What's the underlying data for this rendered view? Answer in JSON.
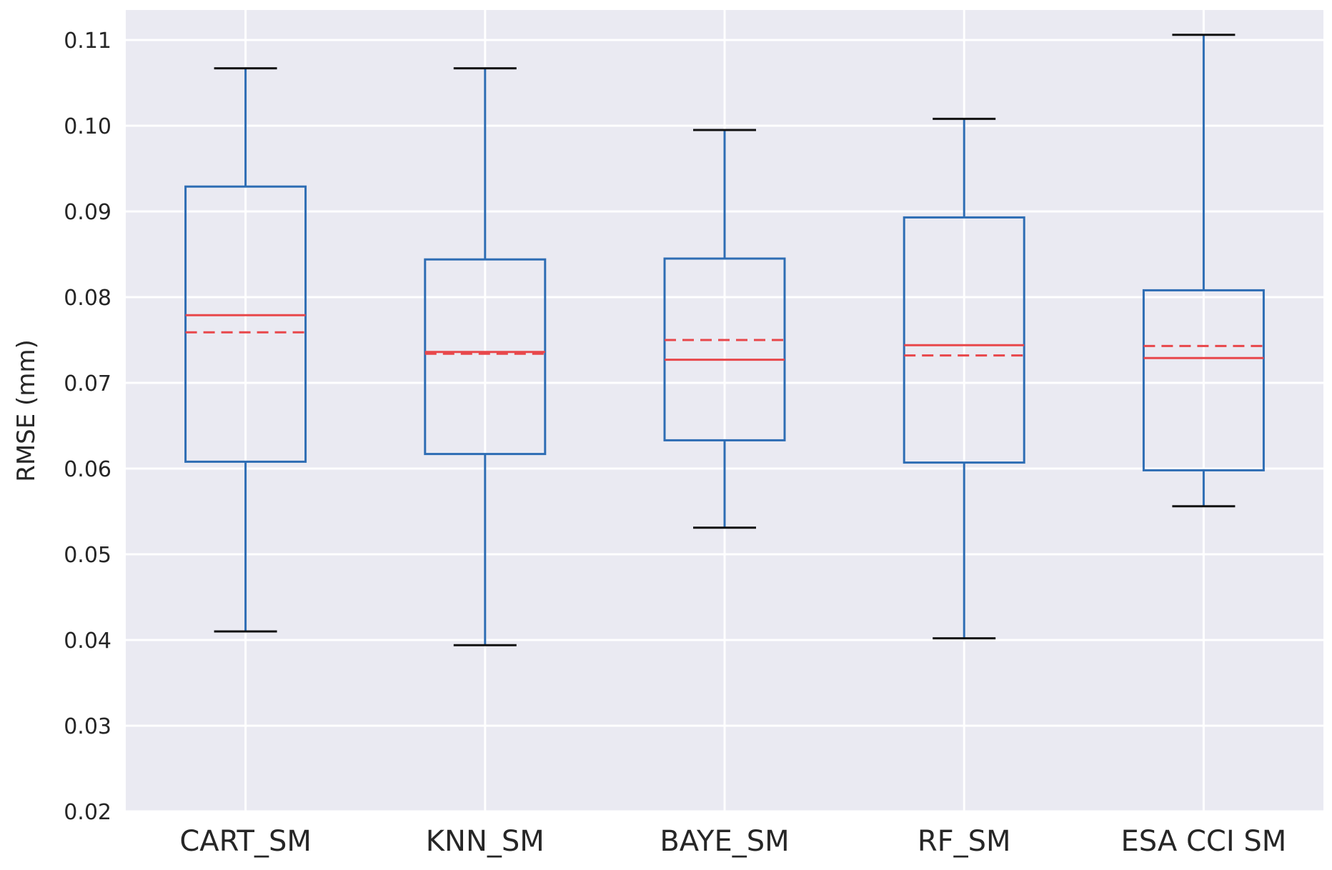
{
  "chart_data": {
    "type": "boxplot",
    "title": "",
    "xlabel": "",
    "ylabel": "RMSE (mm)",
    "ylim": [
      0.02,
      0.1135
    ],
    "yticks": [
      "0.02",
      "0.03",
      "0.04",
      "0.05",
      "0.06",
      "0.07",
      "0.08",
      "0.09",
      "0.10",
      "0.11"
    ],
    "ytick_values": [
      0.02,
      0.03,
      0.04,
      0.05,
      0.06,
      0.07,
      0.08,
      0.09,
      0.1,
      0.11
    ],
    "grid": true,
    "categories": [
      "CART_SM",
      "KNN_SM",
      "BAYE_SM",
      "RF_SM",
      "ESA CCI SM"
    ],
    "boxes": [
      {
        "label": "CART_SM",
        "whisker_low": 0.041,
        "q1": 0.0608,
        "median": 0.0779,
        "mean": 0.0759,
        "q3": 0.0929,
        "whisker_high": 0.1067
      },
      {
        "label": "KNN_SM",
        "whisker_low": 0.0394,
        "q1": 0.0617,
        "median": 0.0736,
        "mean": 0.0734,
        "q3": 0.0844,
        "whisker_high": 0.1067
      },
      {
        "label": "BAYE_SM",
        "whisker_low": 0.0531,
        "q1": 0.0633,
        "median": 0.0727,
        "mean": 0.075,
        "q3": 0.0845,
        "whisker_high": 0.0995
      },
      {
        "label": "RF_SM",
        "whisker_low": 0.0402,
        "q1": 0.0607,
        "median": 0.0744,
        "mean": 0.0732,
        "q3": 0.0893,
        "whisker_high": 0.1008
      },
      {
        "label": "ESA CCI SM",
        "whisker_low": 0.0556,
        "q1": 0.0598,
        "median": 0.0729,
        "mean": 0.0743,
        "q3": 0.0808,
        "whisker_high": 0.1106
      }
    ],
    "colors": {
      "background": "#EAEAF2",
      "grid": "#FFFFFF",
      "box": "#2E6DB4",
      "whisker_cap": "#111111",
      "median": "#E8474B",
      "mean": "#E8474B"
    }
  }
}
